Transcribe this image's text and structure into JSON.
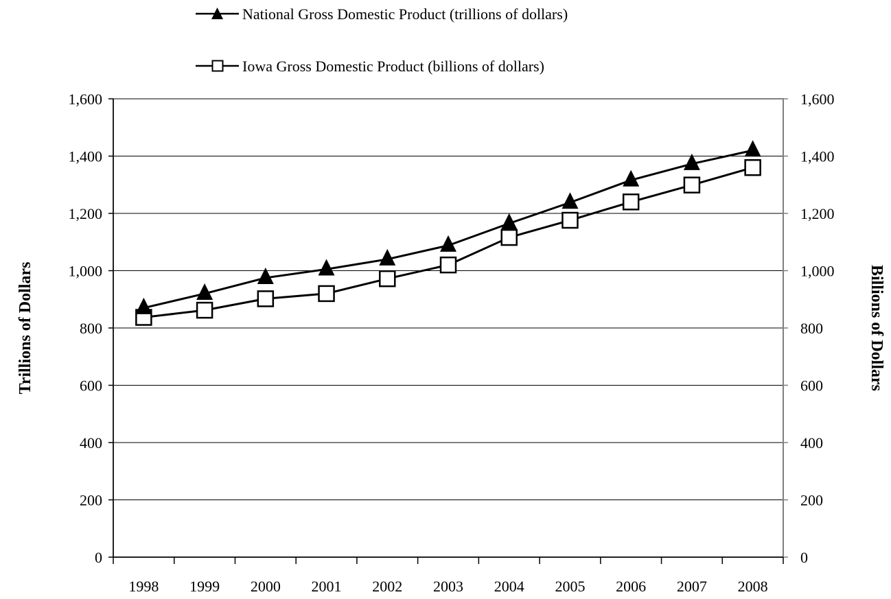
{
  "chart_data": {
    "type": "line",
    "categories": [
      "1998",
      "1999",
      "2000",
      "2001",
      "2002",
      "2003",
      "2004",
      "2005",
      "2006",
      "2007",
      "2008"
    ],
    "series": [
      {
        "name": "National Gross Domestic Product (trillions of dollars)",
        "marker": "filled-triangle",
        "axis": "left",
        "values": [
          870,
          920,
          975,
          1005,
          1040,
          1088,
          1165,
          1238,
          1316,
          1373,
          1420
        ]
      },
      {
        "name": "Iowa Gross Domestic Product (billions of dollars)",
        "marker": "open-square",
        "axis": "right",
        "values": [
          837,
          862,
          902,
          920,
          972,
          1020,
          1116,
          1176,
          1240,
          1299,
          1360
        ]
      }
    ],
    "ylabel_left": "Trillions of Dollars",
    "ylabel_right": "Billions of Dollars",
    "ylim": [
      0,
      1600
    ],
    "yticks": [
      "0",
      "200",
      "400",
      "600",
      "800",
      "1,000",
      "1,200",
      "1,400",
      "1,600"
    ],
    "grid": true,
    "legend_position": "top",
    "colors": {
      "line": "#000000",
      "plot_border": "#808080",
      "gridline": "#000000"
    }
  }
}
